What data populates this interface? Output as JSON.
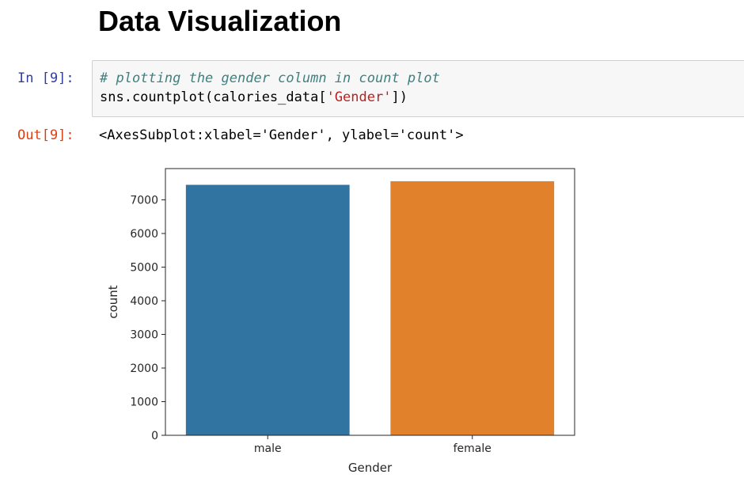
{
  "heading": "Data Visualization",
  "cell": {
    "in_prompt": "In [9]:",
    "code_comment": "# plotting the gender column in count plot",
    "code_prefix": "sns.countplot(calories_data[",
    "code_string": "'Gender'",
    "code_suffix": "])",
    "out_prompt": "Out[9]:",
    "output_text": "<AxesSubplot:xlabel='Gender', ylabel='count'>"
  },
  "chart_data": {
    "type": "bar",
    "categories": [
      "male",
      "female"
    ],
    "values": [
      7447,
      7553
    ],
    "colors": [
      "#3274a1",
      "#e1812c"
    ],
    "xlabel": "Gender",
    "ylabel": "count",
    "yticks": [
      0,
      1000,
      2000,
      3000,
      4000,
      5000,
      6000,
      7000
    ],
    "ylim": [
      0,
      7930
    ],
    "grid": false
  }
}
